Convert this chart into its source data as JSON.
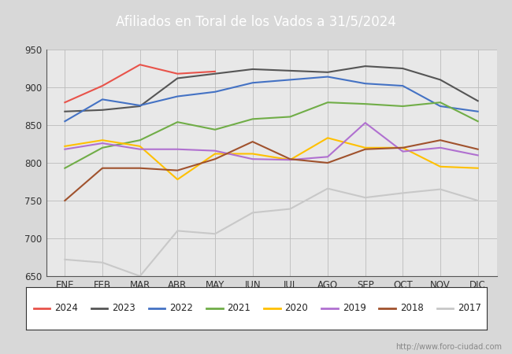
{
  "title": "Afiliados en Toral de los Vados a 31/5/2024",
  "title_bg_color": "#4472c4",
  "xlabel": "",
  "ylabel": "",
  "ylim": [
    650,
    950
  ],
  "yticks": [
    650,
    700,
    750,
    800,
    850,
    900,
    950
  ],
  "months": [
    "ENE",
    "FEB",
    "MAR",
    "ABR",
    "MAY",
    "JUN",
    "JUL",
    "AGO",
    "SEP",
    "OCT",
    "NOV",
    "DIC"
  ],
  "watermark": "http://www.foro-ciudad.com",
  "bg_color": "#f0f0f0",
  "plot_bg_color": "#e8e8e8",
  "series": {
    "2024": {
      "color": "#e8534a",
      "data": [
        880,
        902,
        930,
        918,
        921,
        null,
        null,
        null,
        null,
        null,
        null,
        null
      ]
    },
    "2023": {
      "color": "#555555",
      "data": [
        868,
        870,
        875,
        912,
        918,
        924,
        922,
        920,
        928,
        925,
        910,
        882
      ]
    },
    "2022": {
      "color": "#4472c4",
      "data": [
        855,
        884,
        876,
        888,
        894,
        906,
        910,
        914,
        905,
        902,
        875,
        868
      ]
    },
    "2021": {
      "color": "#70ad47",
      "data": [
        793,
        820,
        830,
        854,
        844,
        858,
        861,
        880,
        878,
        875,
        880,
        855
      ]
    },
    "2020": {
      "color": "#ffc000",
      "data": [
        822,
        830,
        822,
        778,
        812,
        812,
        804,
        833,
        820,
        820,
        795,
        793
      ]
    },
    "2019": {
      "color": "#b070d0",
      "data": [
        818,
        826,
        818,
        818,
        816,
        805,
        804,
        808,
        853,
        815,
        820,
        810
      ]
    },
    "2018": {
      "color": "#a0522d",
      "data": [
        750,
        793,
        793,
        790,
        805,
        828,
        805,
        800,
        818,
        820,
        830,
        818
      ]
    },
    "2017": {
      "color": "#c8c8c8",
      "data": [
        672,
        668,
        650,
        710,
        706,
        734,
        739,
        766,
        754,
        760,
        765,
        750
      ]
    }
  },
  "legend_order": [
    "2024",
    "2023",
    "2022",
    "2021",
    "2020",
    "2019",
    "2018",
    "2017"
  ]
}
